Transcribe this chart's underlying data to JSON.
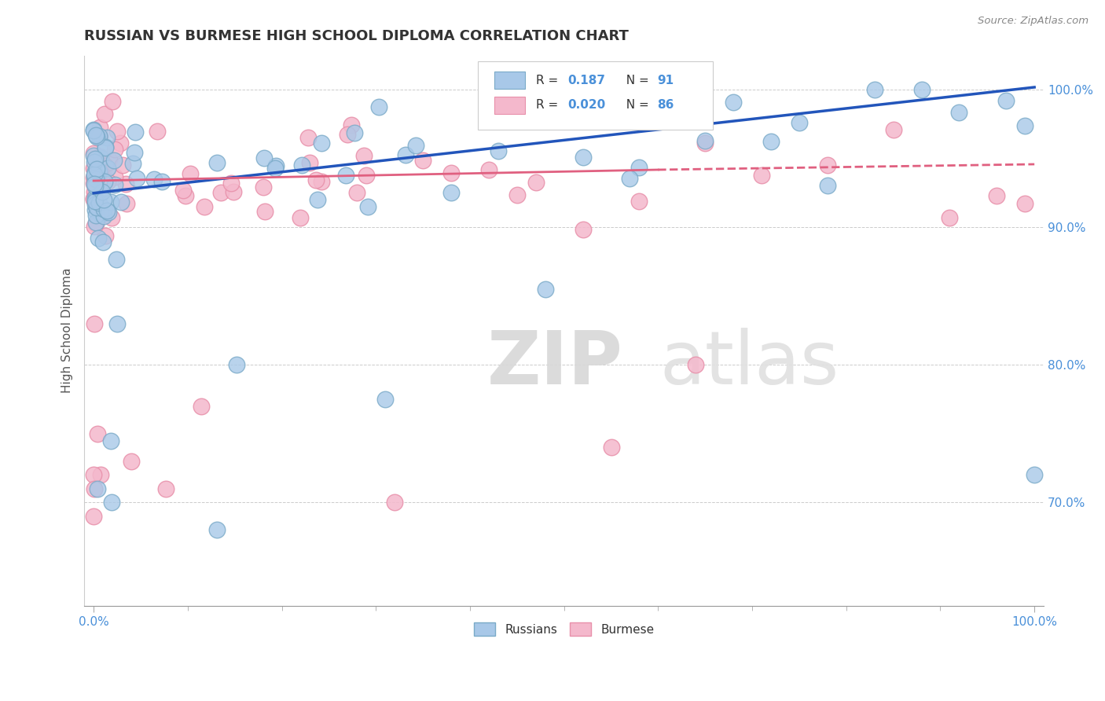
{
  "title": "RUSSIAN VS BURMESE HIGH SCHOOL DIPLOMA CORRELATION CHART",
  "source": "Source: ZipAtlas.com",
  "ylabel": "High School Diploma",
  "background_color": "#ffffff",
  "russian_color": "#a8c8e8",
  "burmese_color": "#f4b8cc",
  "russian_edge": "#7aaac8",
  "burmese_edge": "#e890aa",
  "russian_line_color": "#2255bb",
  "burmese_line_color": "#e06080",
  "R_russian": 0.187,
  "N_russian": 91,
  "R_burmese": 0.02,
  "N_burmese": 86,
  "legend_label_russian": "Russians",
  "legend_label_burmese": "Burmese",
  "watermark_zip": "ZIP",
  "watermark_atlas": "atlas",
  "xlim": [
    -0.01,
    1.01
  ],
  "ylim": [
    0.625,
    1.025
  ],
  "ytick_vals": [
    0.7,
    0.8,
    0.9,
    1.0
  ],
  "ytick_labels": [
    "70.0%",
    "80.0%",
    "90.0%",
    "100.0%"
  ],
  "xtick_vals": [
    0.0,
    1.0
  ],
  "xtick_labels": [
    "0.0%",
    "100.0%"
  ]
}
